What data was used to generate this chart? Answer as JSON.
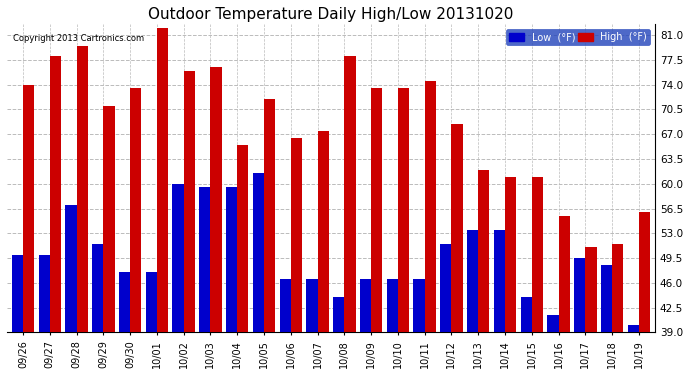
{
  "title": "Outdoor Temperature Daily High/Low 20131020",
  "copyright": "Copyright 2013 Cartronics.com",
  "dates": [
    "09/26",
    "09/27",
    "09/28",
    "09/29",
    "09/30",
    "10/01",
    "10/02",
    "10/03",
    "10/04",
    "10/05",
    "10/06",
    "10/07",
    "10/08",
    "10/09",
    "10/10",
    "10/11",
    "10/12",
    "10/13",
    "10/14",
    "10/15",
    "10/16",
    "10/17",
    "10/18",
    "10/19"
  ],
  "highs": [
    74.0,
    78.0,
    79.5,
    71.0,
    73.5,
    82.0,
    76.0,
    76.5,
    65.5,
    72.0,
    66.5,
    67.5,
    78.0,
    73.5,
    73.5,
    74.5,
    68.5,
    62.0,
    61.0,
    61.0,
    55.5,
    51.0,
    51.5,
    56.0
  ],
  "lows": [
    50.0,
    50.0,
    57.0,
    51.5,
    47.5,
    47.5,
    60.0,
    59.5,
    59.5,
    61.5,
    46.5,
    46.5,
    44.0,
    46.5,
    46.5,
    46.5,
    51.5,
    53.5,
    53.5,
    44.0,
    41.5,
    49.5,
    48.5,
    40.0
  ],
  "low_color": "#0000cc",
  "high_color": "#cc0000",
  "bg_color": "#ffffff",
  "plot_bg_color": "#ffffff",
  "ylim_min": 39.0,
  "ylim_max": 82.5,
  "yticks": [
    39.0,
    42.5,
    46.0,
    49.5,
    53.0,
    56.5,
    60.0,
    63.5,
    67.0,
    70.5,
    74.0,
    77.5,
    81.0
  ],
  "grid_color": "#bbbbbb",
  "title_fontsize": 11,
  "bar_width": 0.42,
  "legend_low_label": "Low  (°F)",
  "legend_high_label": "High  (°F)"
}
